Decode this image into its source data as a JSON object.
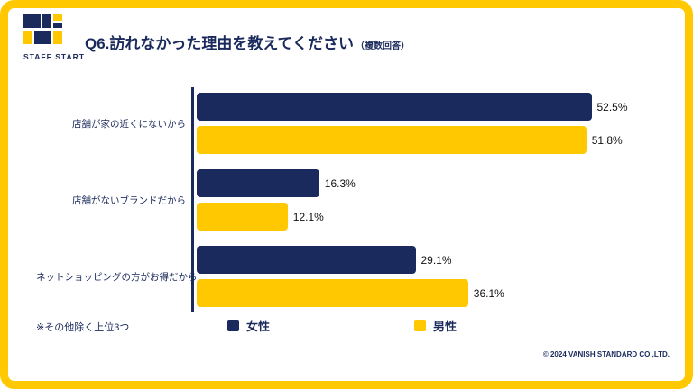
{
  "colors": {
    "navy": "#1B2A5C",
    "yellow": "#FFC800",
    "frame": "#FFC800"
  },
  "header": {
    "logo_text": "STAFF START",
    "title": "Q6.訪れなかった理由を教えてください",
    "title_note": "（複数回答）"
  },
  "chart_data": {
    "type": "bar",
    "orientation": "horizontal",
    "categories": [
      "店舗が家の近くにないから",
      "店舗がないブランドだから",
      "ネットショッピングの方がお得だから"
    ],
    "series": [
      {
        "name": "女性",
        "color": "#1B2A5C",
        "values": [
          52.5,
          16.3,
          29.1
        ],
        "labels": [
          "52.5%",
          "16.3%",
          "29.1%"
        ]
      },
      {
        "name": "男性",
        "color": "#FFC800",
        "values": [
          51.8,
          12.1,
          36.1
        ],
        "labels": [
          "51.8%",
          "12.1%",
          "36.1%"
        ]
      }
    ],
    "xlim": [
      0,
      60
    ],
    "value_suffix": "%",
    "grid": false,
    "legend_position": "bottom"
  },
  "footnote": "※その他除く上位3つ",
  "copyright": "© 2024 VANISH STANDARD CO.,LTD."
}
